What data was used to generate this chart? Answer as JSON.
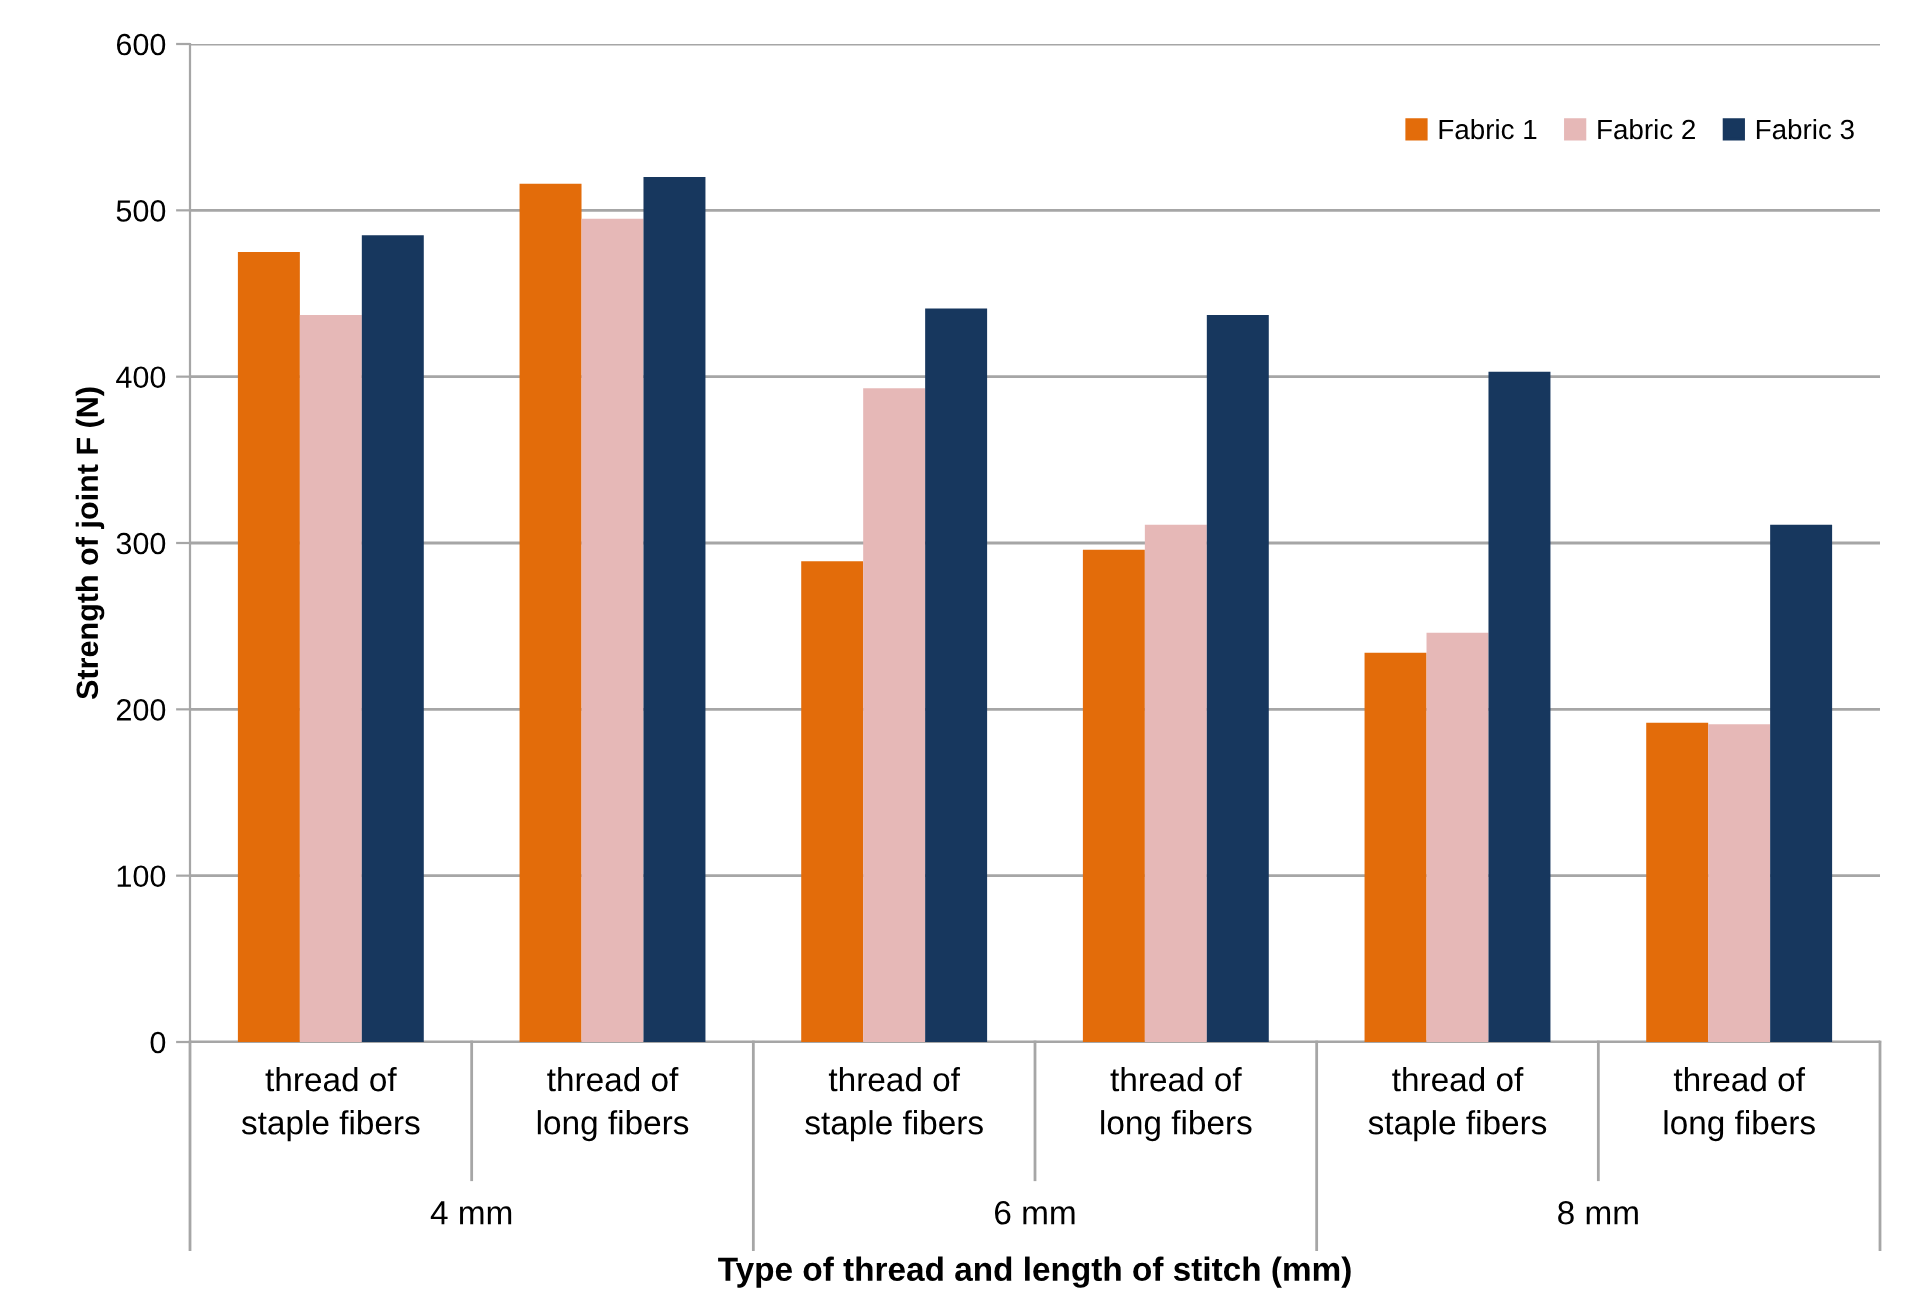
{
  "chart_data": {
    "type": "bar",
    "xlabel": "Type of thread and length of stitch (mm)",
    "ylabel": "Strength of joint F (N)",
    "categories": [
      "thread of staple fibers",
      "thread of long fibers",
      "thread of staple fibers",
      "thread of long fibers",
      "thread of staple fibers",
      "thread of long fibers"
    ],
    "annotations": [
      "4 mm",
      "6 mm",
      "8 mm"
    ],
    "series": [
      {
        "name": "Fabric 1",
        "color": "#e36c0a",
        "values": [
          475,
          516,
          289,
          296,
          234,
          192
        ]
      },
      {
        "name": "Fabric 2",
        "color": "#e6b8b7",
        "values": [
          437,
          495,
          393,
          311,
          246,
          191
        ]
      },
      {
        "name": "Fabric 3",
        "color": "#17375e",
        "values": [
          485,
          520,
          441,
          437,
          403,
          311
        ]
      }
    ],
    "ylim": [
      0,
      600
    ],
    "yticks": [
      0,
      100,
      200,
      300,
      400,
      500,
      600
    ],
    "grid": "y",
    "legend": "top right"
  }
}
